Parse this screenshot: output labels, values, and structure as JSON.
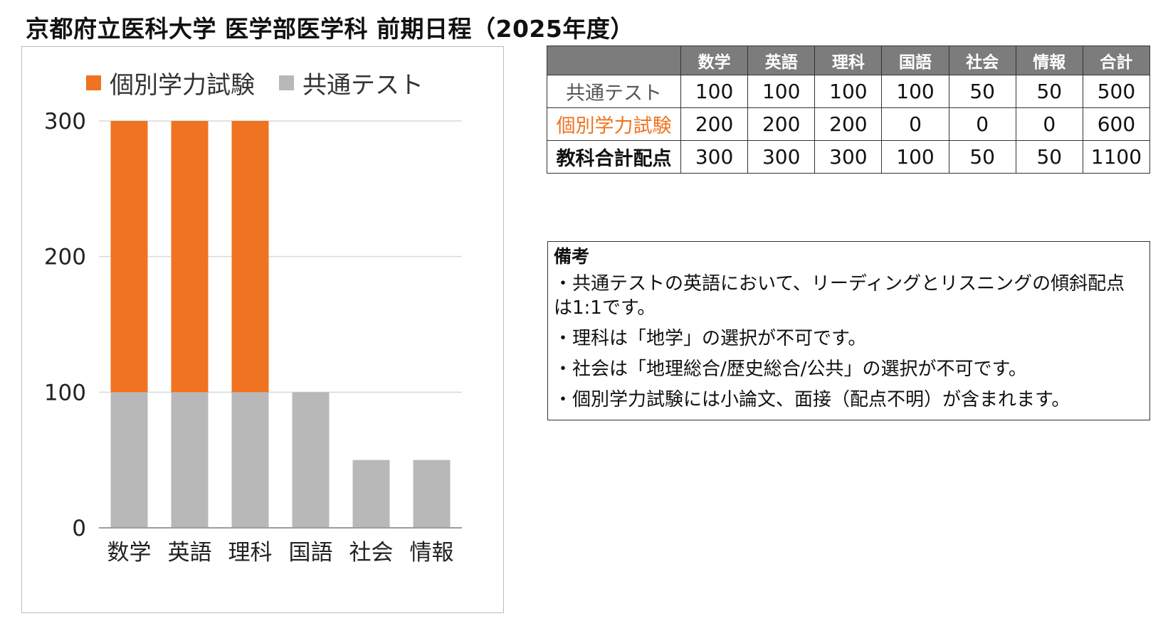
{
  "title": "京都府立医科大学 医学部医学科 前期日程（2025年度）",
  "colors": {
    "individual": "#ef7320",
    "common": "#b8b8b8",
    "header_bg": "#7c7c7c",
    "grid": "#d9d9d9",
    "axis": "#9e9e9e"
  },
  "chart_data": {
    "type": "bar",
    "stacked": true,
    "categories": [
      "数学",
      "英語",
      "理科",
      "国語",
      "社会",
      "情報"
    ],
    "series": [
      {
        "name": "共通テスト",
        "values": [
          100,
          100,
          100,
          100,
          50,
          50
        ]
      },
      {
        "name": "個別学力試験",
        "values": [
          200,
          200,
          200,
          0,
          0,
          0
        ]
      }
    ],
    "legend_order": [
      "個別学力試験",
      "共通テスト"
    ],
    "legend": "top",
    "grid": true,
    "ylim": [
      0,
      300
    ],
    "yticks": [
      0,
      100,
      200,
      300
    ],
    "xlabel": "",
    "ylabel": ""
  },
  "table": {
    "headers": [
      "",
      "数学",
      "英語",
      "理科",
      "国語",
      "社会",
      "情報",
      "合計"
    ],
    "rows": [
      {
        "label": "共通テスト",
        "kind": "common",
        "values": [
          "100",
          "100",
          "100",
          "100",
          "50",
          "50",
          "500"
        ]
      },
      {
        "label": "個別学力試験",
        "kind": "individual",
        "values": [
          "200",
          "200",
          "200",
          "0",
          "0",
          "0",
          "600"
        ]
      },
      {
        "label": "教科合計配点",
        "kind": "total",
        "values": [
          "300",
          "300",
          "300",
          "100",
          "50",
          "50",
          "1100"
        ]
      }
    ]
  },
  "notes": {
    "heading": "備考",
    "items": [
      "・共通テストの英語において、リーディングとリスニングの傾斜配点は1:1です。",
      "・理科は「地学」の選択が不可です。",
      "・社会は「地理総合/歴史総合/公共」の選択が不可です。",
      "・個別学力試験には小論文、面接（配点不明）が含まれます。"
    ]
  }
}
